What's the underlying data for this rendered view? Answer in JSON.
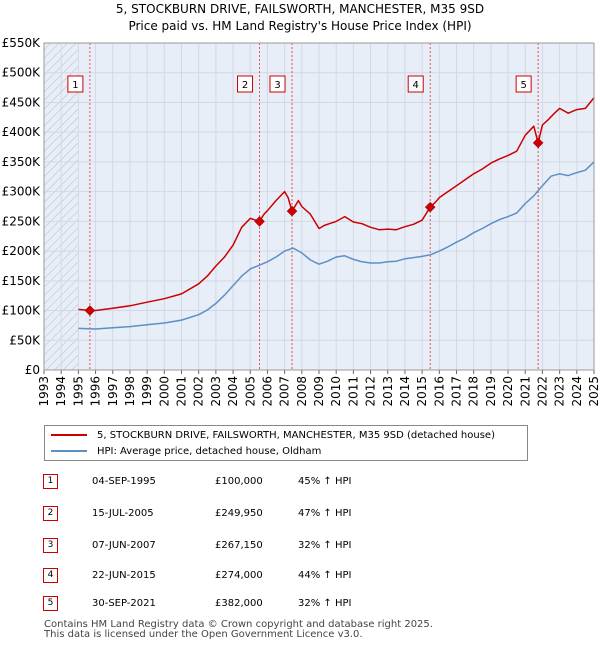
{
  "header": {
    "title": "5, STOCKBURN DRIVE, FAILSWORTH, MANCHESTER, M35 9SD",
    "subtitle": "Price paid vs. HM Land Registry's House Price Index (HPI)"
  },
  "legend": {
    "property_label": "5, STOCKBURN DRIVE, FAILSWORTH, MANCHESTER, M35 9SD (detached house)",
    "hpi_label": "HPI: Average price, detached house, Oldham"
  },
  "colors": {
    "property": "#cc0000",
    "hpi": "#5b8fc7",
    "grid": "#d9dde6",
    "plot_bg": "#e8eef7"
  },
  "sales": [
    {
      "num": "1",
      "date": "04-SEP-1995",
      "price": "£100,000",
      "hpi": "45% ↑ HPI"
    },
    {
      "num": "2",
      "date": "15-JUL-2005",
      "price": "£249,950",
      "hpi": "47% ↑ HPI"
    },
    {
      "num": "3",
      "date": "07-JUN-2007",
      "price": "£267,150",
      "hpi": "32% ↑ HPI"
    },
    {
      "num": "4",
      "date": "22-JUN-2015",
      "price": "£274,000",
      "hpi": "44% ↑ HPI"
    },
    {
      "num": "5",
      "date": "30-SEP-2021",
      "price": "£382,000",
      "hpi": "32% ↑ HPI"
    }
  ],
  "footer": {
    "line1": "Contains HM Land Registry data © Crown copyright and database right 2025.",
    "line2": "This data is licensed under the Open Government Licence v3.0."
  },
  "chart_data": {
    "type": "line",
    "title": "5, STOCKBURN DRIVE, FAILSWORTH, MANCHESTER, M35 9SD",
    "subtitle": "Price paid vs. HM Land Registry's House Price Index (HPI)",
    "xlim": [
      1993,
      2025
    ],
    "ylim": [
      0,
      550000
    ],
    "x_ticks": [
      1993,
      1994,
      1995,
      1996,
      1997,
      1998,
      1999,
      2000,
      2001,
      2002,
      2003,
      2004,
      2005,
      2006,
      2007,
      2008,
      2009,
      2010,
      2011,
      2012,
      2013,
      2014,
      2015,
      2016,
      2017,
      2018,
      2019,
      2020,
      2021,
      2022,
      2023,
      2024,
      2025
    ],
    "y_ticks": [
      {
        "value": 0,
        "label": "£0"
      },
      {
        "value": 50000,
        "label": "£50K"
      },
      {
        "value": 100000,
        "label": "£100K"
      },
      {
        "value": 150000,
        "label": "£150K"
      },
      {
        "value": 200000,
        "label": "£200K"
      },
      {
        "value": 250000,
        "label": "£250K"
      },
      {
        "value": 300000,
        "label": "£300K"
      },
      {
        "value": 350000,
        "label": "£350K"
      },
      {
        "value": 400000,
        "label": "£400K"
      },
      {
        "value": 450000,
        "label": "£450K"
      },
      {
        "value": 500000,
        "label": "£500K"
      },
      {
        "value": 550000,
        "label": "£550K"
      }
    ],
    "hatched_region": [
      1993,
      1995.0
    ],
    "sale_markers": [
      {
        "label": "1",
        "x": 1995.67,
        "y": 100000
      },
      {
        "label": "2",
        "x": 2005.54,
        "y": 249950
      },
      {
        "label": "3",
        "x": 2007.43,
        "y": 267150
      },
      {
        "label": "4",
        "x": 2015.47,
        "y": 274000
      },
      {
        "label": "5",
        "x": 2021.75,
        "y": 382000
      }
    ],
    "series": [
      {
        "name": "5, STOCKBURN DRIVE, FAILSWORTH, MANCHESTER, M35 9SD (detached house)",
        "x": [
          1995.0,
          1995.67,
          1996,
          1997,
          1998,
          1999,
          2000,
          2001,
          2002,
          2002.5,
          2003,
          2003.5,
          2004,
          2004.5,
          2005,
          2005.54,
          2005.8,
          2006,
          2006.5,
          2007,
          2007.2,
          2007.43,
          2007.8,
          2008,
          2008.5,
          2009,
          2009.3,
          2009.6,
          2010,
          2010.5,
          2011,
          2011.5,
          2012,
          2012.5,
          2013,
          2013.5,
          2014,
          2014.5,
          2015,
          2015.47,
          2015.8,
          2016,
          2016.5,
          2017,
          2017.5,
          2018,
          2018.5,
          2019,
          2019.5,
          2020,
          2020.5,
          2021,
          2021.5,
          2021.75,
          2022,
          2022.3,
          2022.7,
          2023,
          2023.5,
          2024,
          2024.5,
          2025
        ],
        "values": [
          102000,
          100000,
          100000,
          104000,
          108000,
          114000,
          120000,
          128000,
          145000,
          158000,
          175000,
          190000,
          210000,
          240000,
          255000,
          249950,
          262000,
          268000,
          285000,
          300000,
          290000,
          267150,
          285000,
          275000,
          262000,
          238000,
          243000,
          246000,
          250000,
          258000,
          249000,
          246000,
          240000,
          236000,
          237000,
          236000,
          241000,
          245000,
          252000,
          274000,
          283000,
          290000,
          300000,
          310000,
          320000,
          330000,
          338000,
          348000,
          355000,
          361000,
          368000,
          395000,
          410000,
          382000,
          412000,
          420000,
          432000,
          440000,
          432000,
          438000,
          440000,
          458000
        ]
      },
      {
        "name": "HPI: Average price, detached house, Oldham",
        "x": [
          1995.0,
          1996,
          1997,
          1998,
          1999,
          2000,
          2001,
          2002,
          2002.5,
          2003,
          2003.5,
          2004,
          2004.5,
          2005,
          2005.5,
          2006,
          2006.5,
          2007,
          2007.5,
          2008,
          2008.5,
          2009,
          2009.5,
          2010,
          2010.5,
          2011,
          2011.5,
          2012,
          2012.5,
          2013,
          2013.5,
          2014,
          2014.5,
          2015,
          2015.5,
          2016,
          2016.5,
          2017,
          2017.5,
          2018,
          2018.5,
          2019,
          2019.5,
          2020,
          2020.5,
          2021,
          2021.5,
          2022,
          2022.5,
          2023,
          2023.5,
          2024,
          2024.5,
          2025
        ],
        "values": [
          70000,
          69000,
          71000,
          73000,
          76000,
          79000,
          84000,
          93000,
          101000,
          112000,
          126000,
          142000,
          158000,
          170000,
          176000,
          182000,
          190000,
          200000,
          205000,
          197000,
          185000,
          178000,
          183000,
          190000,
          192000,
          186000,
          182000,
          180000,
          180000,
          182000,
          183000,
          187000,
          189000,
          191000,
          194000,
          200000,
          207000,
          215000,
          222000,
          231000,
          238000,
          246000,
          253000,
          258000,
          264000,
          280000,
          293000,
          310000,
          326000,
          330000,
          327000,
          332000,
          336000,
          350000
        ]
      }
    ]
  }
}
